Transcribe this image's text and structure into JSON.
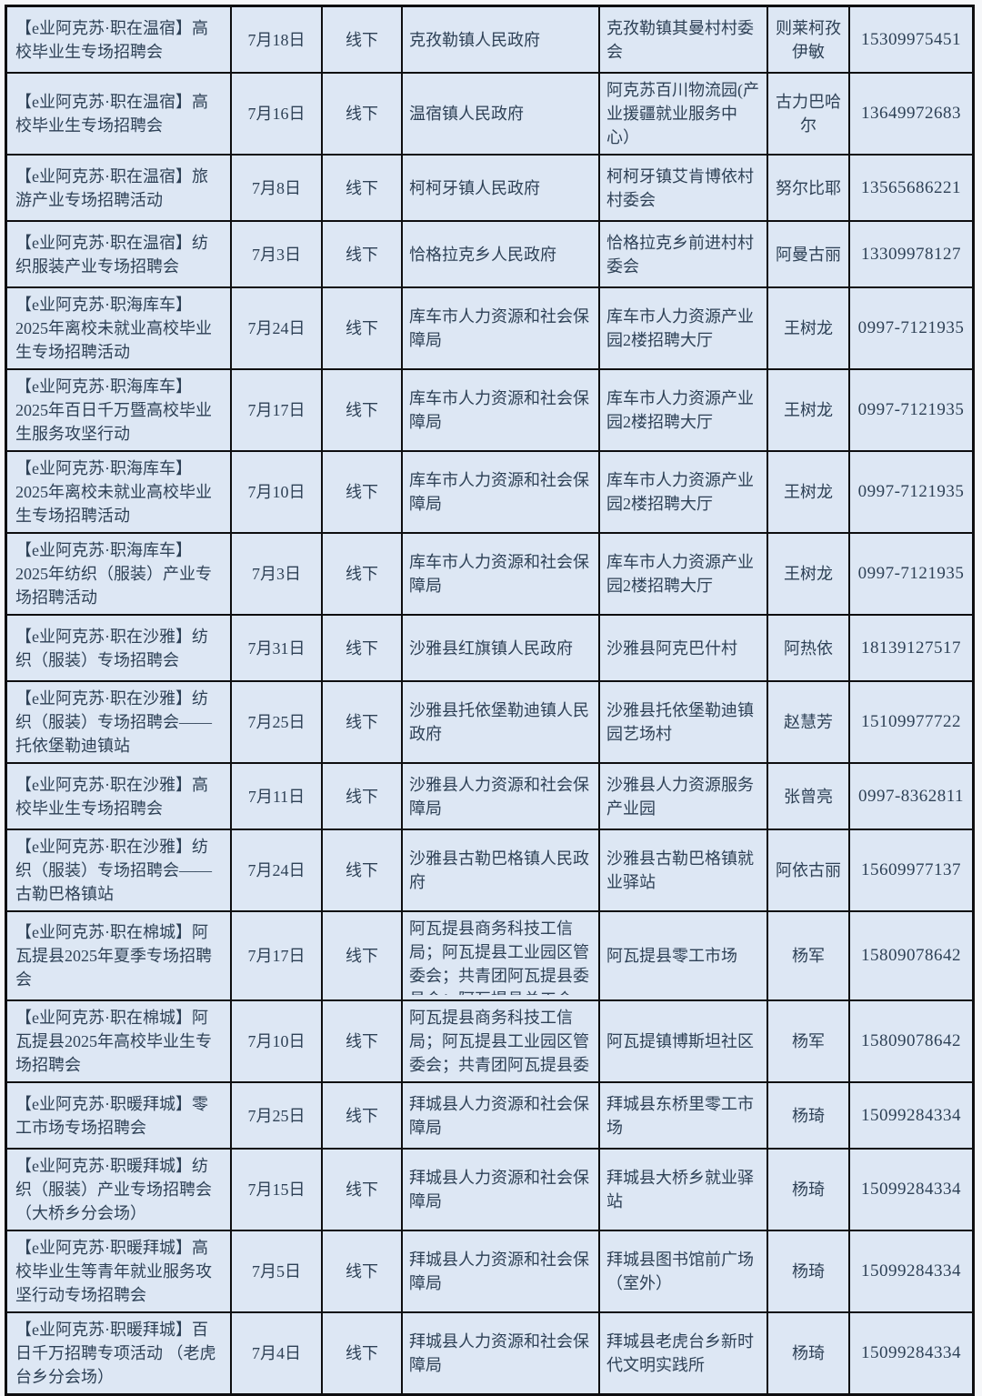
{
  "colors": {
    "page_bg": "#f6f7f9",
    "cell_bg": "#dde7f4",
    "grid_line": "#0e0e10",
    "text": "#2e4156"
  },
  "table": {
    "column_keys": [
      "event",
      "date",
      "mode",
      "organizer",
      "location",
      "contact",
      "phone"
    ],
    "rows": [
      {
        "event": "【e业阿克苏·职在温宿】高校毕业生专场招聘会",
        "date": "7月18日",
        "mode": "线下",
        "organizer": "克孜勒镇人民政府",
        "location": "克孜勒镇其曼村村委会",
        "contact": "则莱柯孜伊敏",
        "phone": "15309975451"
      },
      {
        "event": "【e业阿克苏·职在温宿】高校毕业生专场招聘会",
        "date": "7月16日",
        "mode": "线下",
        "organizer": "温宿镇人民政府",
        "location": "阿克苏百川物流园(产业援疆就业服务中心）",
        "contact": "古力巴哈尔",
        "phone": "13649972683"
      },
      {
        "event": "【e业阿克苏·职在温宿】旅游产业专场招聘活动",
        "date": "7月8日",
        "mode": "线下",
        "organizer": "柯柯牙镇人民政府",
        "location": "柯柯牙镇艾肯博依村村委会",
        "contact": "努尔比耶",
        "phone": "13565686221"
      },
      {
        "event": "【e业阿克苏·职在温宿】纺织服装产业专场招聘会",
        "date": "7月3日",
        "mode": "线下",
        "organizer": "恰格拉克乡人民政府",
        "location": "恰格拉克乡前进村村委会",
        "contact": "阿曼古丽",
        "phone": "13309978127"
      },
      {
        "event": "【e业阿克苏·职海库车】2025年离校未就业高校毕业生专场招聘活动",
        "date": "7月24日",
        "mode": "线下",
        "organizer": "库车市人力资源和社会保障局",
        "location": "库车市人力资源产业园2楼招聘大厅",
        "contact": "王树龙",
        "phone": "0997-7121935"
      },
      {
        "event": "【e业阿克苏·职海库车】2025年百日千万暨高校毕业生服务攻坚行动",
        "date": "7月17日",
        "mode": "线下",
        "organizer": "库车市人力资源和社会保障局",
        "location": "库车市人力资源产业园2楼招聘大厅",
        "contact": "王树龙",
        "phone": "0997-7121935"
      },
      {
        "event": "【e业阿克苏·职海库车】2025年离校未就业高校毕业生专场招聘活动",
        "date": "7月10日",
        "mode": "线下",
        "organizer": "库车市人力资源和社会保障局",
        "location": "库车市人力资源产业园2楼招聘大厅",
        "contact": "王树龙",
        "phone": "0997-7121935"
      },
      {
        "event": "【e业阿克苏·职海库车】2025年纺织（服装）产业专场招聘活动",
        "date": "7月3日",
        "mode": "线下",
        "organizer": "库车市人力资源和社会保障局",
        "location": "库车市人力资源产业园2楼招聘大厅",
        "contact": "王树龙",
        "phone": "0997-7121935"
      },
      {
        "event": "【e业阿克苏·职在沙雅】纺织（服装）专场招聘会",
        "date": "7月31日",
        "mode": "线下",
        "organizer": "沙雅县红旗镇人民政府",
        "location": "沙雅县阿克巴什村",
        "contact": "阿热依",
        "phone": "18139127517"
      },
      {
        "event": "【e业阿克苏·职在沙雅】纺织（服装）专场招聘会——托依堡勒迪镇站",
        "date": "7月25日",
        "mode": "线下",
        "organizer": "沙雅县托依堡勒迪镇人民政府",
        "location": "沙雅县托依堡勒迪镇园艺场村",
        "contact": "赵慧芳",
        "phone": "15109977722"
      },
      {
        "event": "【e业阿克苏·职在沙雅】高校毕业生专场招聘会",
        "date": "7月11日",
        "mode": "线下",
        "organizer": "沙雅县人力资源和社会保障局",
        "location": "沙雅县人力资源服务产业园",
        "contact": "张曾亮",
        "phone": "0997-8362811"
      },
      {
        "event": "【e业阿克苏·职在沙雅】纺织（服装）专场招聘会——古勒巴格镇站",
        "date": "7月24日",
        "mode": "线下",
        "organizer": "沙雅县古勒巴格镇人民政府",
        "location": "沙雅县古勒巴格镇就业驿站",
        "contact": "阿依古丽",
        "phone": "15609977137"
      },
      {
        "event": "【e业阿克苏·职在棉城】阿瓦提县2025年夏季专场招聘会",
        "date": "7月17日",
        "mode": "线下",
        "organizer": "阿瓦提县商务科技工信局；阿瓦提县工业园区管委会；共青团阿瓦提县委员会；阿瓦提县总工会　　　　　",
        "location": "阿瓦提县零工市场",
        "contact": "杨军",
        "phone": "15809078642"
      },
      {
        "event": "【e业阿克苏·职在棉城】阿瓦提县2025年高校毕业生专场招聘会",
        "date": "7月10日",
        "mode": "线下",
        "organizer": "阿瓦提县商务科技工信局；阿瓦提县工业园区管委会；共青团阿瓦提县委员会",
        "location": "阿瓦提镇博斯坦社区",
        "contact": "杨军",
        "phone": "15809078642"
      },
      {
        "event": "【e业阿克苏·职暖拜城】零工市场专场招聘会",
        "date": "7月25日",
        "mode": "线下",
        "organizer": "拜城县人力资源和社会保障局",
        "location": "拜城县东桥里零工市场",
        "contact": "杨琦",
        "phone": "15099284334"
      },
      {
        "event": "【e业阿克苏·职暖拜城】纺织（服装）产业专场招聘会 （大桥乡分会场）",
        "date": "7月15日",
        "mode": "线下",
        "organizer": "拜城县人力资源和社会保障局",
        "location": "拜城县大桥乡就业驿站",
        "contact": "杨琦",
        "phone": "15099284334"
      },
      {
        "event": "【e业阿克苏·职暖拜城】高校毕业生等青年就业服务攻坚行动专场招聘会",
        "date": "7月5日",
        "mode": "线下",
        "organizer": "拜城县人力资源和社会保障局",
        "location": "拜城县图书馆前广场（室外）",
        "contact": "杨琦",
        "phone": "15099284334"
      },
      {
        "event": "【e业阿克苏·职暖拜城】百日千万招聘专项活动 （老虎台乡分会场）",
        "date": "7月4日",
        "mode": "线下",
        "organizer": "拜城县人力资源和社会保障局",
        "location": "拜城县老虎台乡新时代文明实践所",
        "contact": "杨琦",
        "phone": "15099284334"
      }
    ]
  }
}
